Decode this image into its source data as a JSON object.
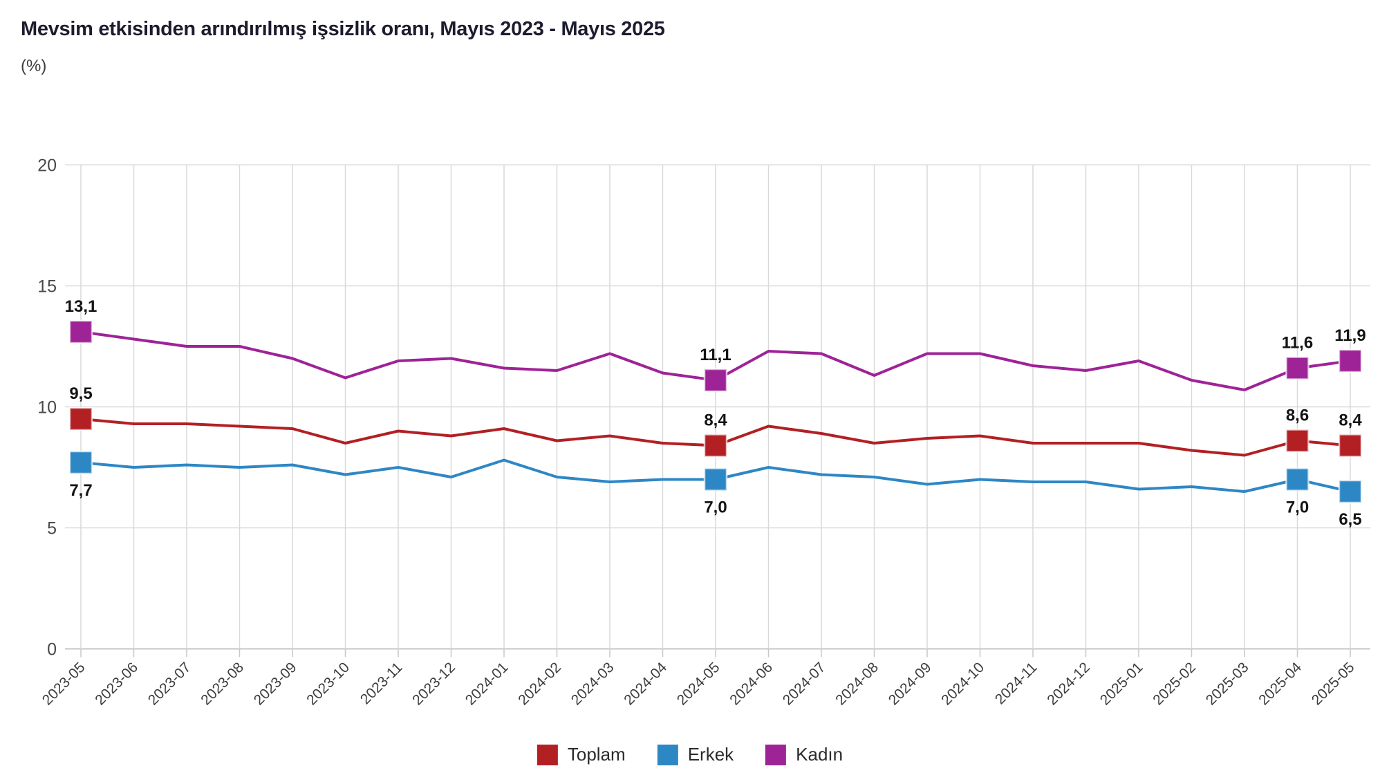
{
  "title": "Mevsim etkisinden arındırılmış işsizlik oranı, Mayıs 2023 - Mayıs 2025",
  "subtitle": "(%)",
  "chart_data": {
    "type": "line",
    "title": "Mevsim etkisinden arındırılmış işsizlik oranı, Mayıs 2023 - Mayıs 2025",
    "subtitle_unit": "(%)",
    "grid": true,
    "legend_position": "bottom",
    "ylim": [
      0,
      20
    ],
    "yticks": [
      "0",
      "5",
      "10",
      "15",
      "20"
    ],
    "x": [
      "2023-05",
      "2023-06",
      "2023-07",
      "2023-08",
      "2023-09",
      "2023-10",
      "2023-11",
      "2023-12",
      "2024-01",
      "2024-02",
      "2024-03",
      "2024-04",
      "2024-05",
      "2024-06",
      "2024-07",
      "2024-08",
      "2024-09",
      "2024-10",
      "2024-11",
      "2024-12",
      "2025-01",
      "2025-02",
      "2025-03",
      "2025-04",
      "2025-05"
    ],
    "series": [
      {
        "name": "Toplam",
        "color": "#b22024",
        "label_side": "above",
        "values": [
          9.5,
          9.3,
          9.3,
          9.2,
          9.1,
          8.5,
          9.0,
          8.8,
          9.1,
          8.6,
          8.8,
          8.5,
          8.4,
          9.2,
          8.9,
          8.5,
          8.7,
          8.8,
          8.5,
          8.5,
          8.5,
          8.2,
          8.0,
          8.6,
          8.4
        ],
        "marked_points": [
          {
            "x": "2023-05",
            "text": "9,5"
          },
          {
            "x": "2024-05",
            "text": "8,4"
          },
          {
            "x": "2025-04",
            "text": "8,6"
          },
          {
            "x": "2025-05",
            "text": "8,4"
          }
        ]
      },
      {
        "name": "Erkek",
        "color": "#2e87c5",
        "label_side": "below",
        "values": [
          7.7,
          7.5,
          7.6,
          7.5,
          7.6,
          7.2,
          7.5,
          7.1,
          7.8,
          7.1,
          6.9,
          7.0,
          7.0,
          7.5,
          7.2,
          7.1,
          6.8,
          7.0,
          6.9,
          6.9,
          6.6,
          6.7,
          6.5,
          7.0,
          6.5
        ],
        "marked_points": [
          {
            "x": "2023-05",
            "text": "7,7"
          },
          {
            "x": "2024-05",
            "text": "7,0"
          },
          {
            "x": "2025-04",
            "text": "7,0"
          },
          {
            "x": "2025-05",
            "text": "6,5"
          }
        ]
      },
      {
        "name": "Kadın",
        "color": "#9e2397",
        "label_side": "above",
        "values": [
          13.1,
          12.8,
          12.5,
          12.5,
          12.0,
          11.2,
          11.9,
          12.0,
          11.6,
          11.5,
          12.2,
          11.4,
          11.1,
          12.3,
          12.2,
          11.3,
          12.2,
          12.2,
          11.7,
          11.5,
          11.9,
          11.1,
          10.7,
          11.6,
          11.9
        ],
        "marked_points": [
          {
            "x": "2023-05",
            "text": "13,1"
          },
          {
            "x": "2024-05",
            "text": "11,1"
          },
          {
            "x": "2025-04",
            "text": "11,6"
          },
          {
            "x": "2025-05",
            "text": "11,9"
          }
        ]
      }
    ]
  },
  "legend": {
    "items": [
      {
        "label": "Toplam",
        "color": "#b22024"
      },
      {
        "label": "Erkek",
        "color": "#2e87c5"
      },
      {
        "label": "Kadın",
        "color": "#9e2397"
      }
    ]
  }
}
